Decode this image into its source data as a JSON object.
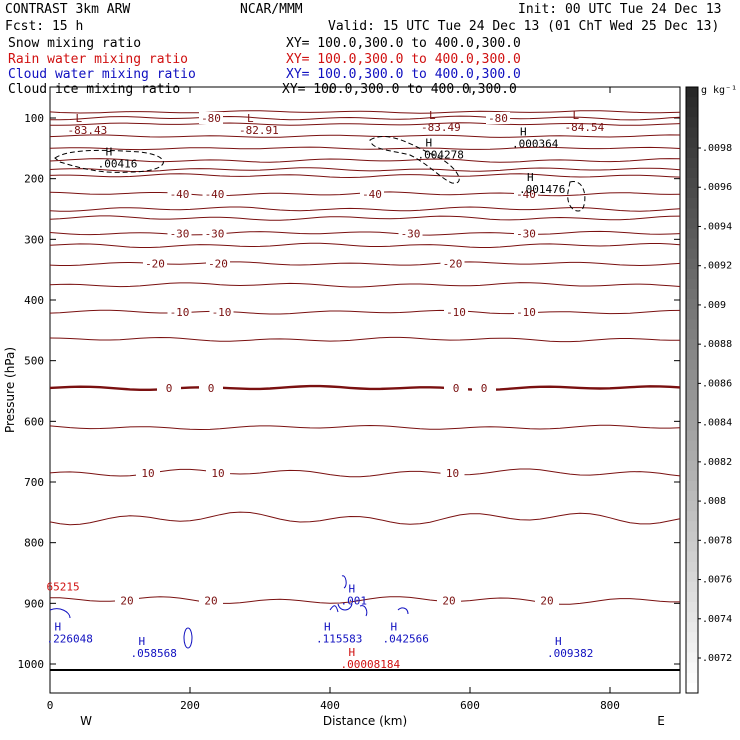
{
  "header": {
    "model": "CONTRAST  3km ARW",
    "org": "NCAR/MMM",
    "init": "Init: 00 UTC Tue 24 Dec 13",
    "fcst": "Fcst:   15 h",
    "valid": "Valid: 15 UTC Tue 24 Dec 13 (01 ChT Wed 25 Dec 13)",
    "fields": [
      {
        "name": "Snow mixing ratio",
        "xy": "XY= 100.0,300.0 to 400.0,300.0",
        "color": "#000000"
      },
      {
        "name": "Rain water mixing ratio",
        "xy": "XY= 100.0,300.0 to 400.0,300.0",
        "color": "#d01010"
      },
      {
        "name": "Cloud water mixing ratio",
        "xy": "XY= 100.0,300.0 to 400.0,300.0",
        "color": "#1010c0"
      },
      {
        "name": "Cloud ice mixing ratio",
        "xy": "XY= 100.0,300.0 to 400.0,300.0",
        "color": "#000000"
      }
    ]
  },
  "chart_data": {
    "type": "contour",
    "xlabel": "Distance (km)",
    "ylabel": "Pressure (hPa)",
    "xlim": [
      0,
      900
    ],
    "ylim": [
      1050,
      50
    ],
    "xticks": [
      0,
      200,
      400,
      600,
      800
    ],
    "yticks": [
      100,
      200,
      300,
      400,
      500,
      600,
      700,
      800,
      900,
      1000
    ],
    "x_end_labels": {
      "left": "W",
      "right": "E"
    },
    "temperature_contours": [
      {
        "p": 100,
        "label": "-80",
        "at": [
          230,
          640
        ]
      },
      {
        "p": 170,
        "label": "",
        "at": []
      },
      {
        "p": 185,
        "label": "",
        "at": []
      },
      {
        "p": 195,
        "label": "",
        "at": []
      },
      {
        "p": 225,
        "label": "-40",
        "at": [
          185,
          235,
          460,
          680
        ]
      },
      {
        "p": 290,
        "label": "-30",
        "at": [
          185,
          235,
          515,
          680
        ]
      },
      {
        "p": 340,
        "label": "-20",
        "at": [
          150,
          240,
          575
        ]
      },
      {
        "p": 420,
        "label": "-10",
        "at": [
          185,
          245,
          580,
          680
        ]
      },
      {
        "p": 545,
        "label": "0",
        "at": [
          170,
          230,
          580,
          620
        ]
      },
      {
        "p": 685,
        "label": "10",
        "at": [
          140,
          240,
          575
        ]
      },
      {
        "p": 895,
        "label": "20",
        "at": [
          110,
          230,
          570,
          710
        ]
      }
    ],
    "colorbar": {
      "unit": "g kg⁻¹",
      "labels": [
        ".0098",
        ".0096",
        ".0094",
        ".0092",
        ".009",
        ".0088",
        ".0086",
        ".0084",
        ".0082",
        ".008",
        ".0078",
        ".0076",
        ".0074",
        ".0072"
      ]
    },
    "extrema": [
      {
        "type": "L",
        "value": "-83.43",
        "x": 25,
        "p": 120,
        "color": "#7a1010"
      },
      {
        "type": "L",
        "value": "-82.91",
        "x": 270,
        "p": 120,
        "color": "#7a1010"
      },
      {
        "type": "L",
        "value": "-83.49",
        "x": 530,
        "p": 115,
        "color": "#7a1010"
      },
      {
        "type": "L",
        "value": "-84.54",
        "x": 735,
        "p": 115,
        "color": "#7a1010"
      },
      {
        "type": "H",
        "value": ".00416",
        "x": 68,
        "p": 175,
        "color": "#000000"
      },
      {
        "type": "H",
        "value": ".004278",
        "x": 525,
        "p": 160,
        "color": "#000000"
      },
      {
        "type": "H",
        "value": ".000364",
        "x": 660,
        "p": 142,
        "color": "#000000"
      },
      {
        "type": "H",
        "value": ".001476",
        "x": 670,
        "p": 217,
        "color": "#000000"
      },
      {
        "type": "H",
        "value": ".001",
        "x": 415,
        "p": 895,
        "color": "#1010c0"
      },
      {
        "type": "H",
        "value": ".226048",
        "x": -5,
        "p": 958,
        "color": "#1010c0"
      },
      {
        "type": "H",
        "value": ".058568",
        "x": 115,
        "p": 982,
        "color": "#1010c0"
      },
      {
        "type": "H",
        "value": ".115583",
        "x": 380,
        "p": 958,
        "color": "#1010c0"
      },
      {
        "type": "H",
        "value": ".042566",
        "x": 475,
        "p": 958,
        "color": "#1010c0"
      },
      {
        "type": "H",
        "value": ".009382",
        "x": 710,
        "p": 982,
        "color": "#1010c0"
      },
      {
        "type": "H",
        "value": ".00008184",
        "x": 415,
        "p": 1000,
        "color": "#d01010"
      },
      {
        "type": "",
        "value": "65215",
        "x": -5,
        "p": 872,
        "color": "#d01010"
      }
    ]
  }
}
